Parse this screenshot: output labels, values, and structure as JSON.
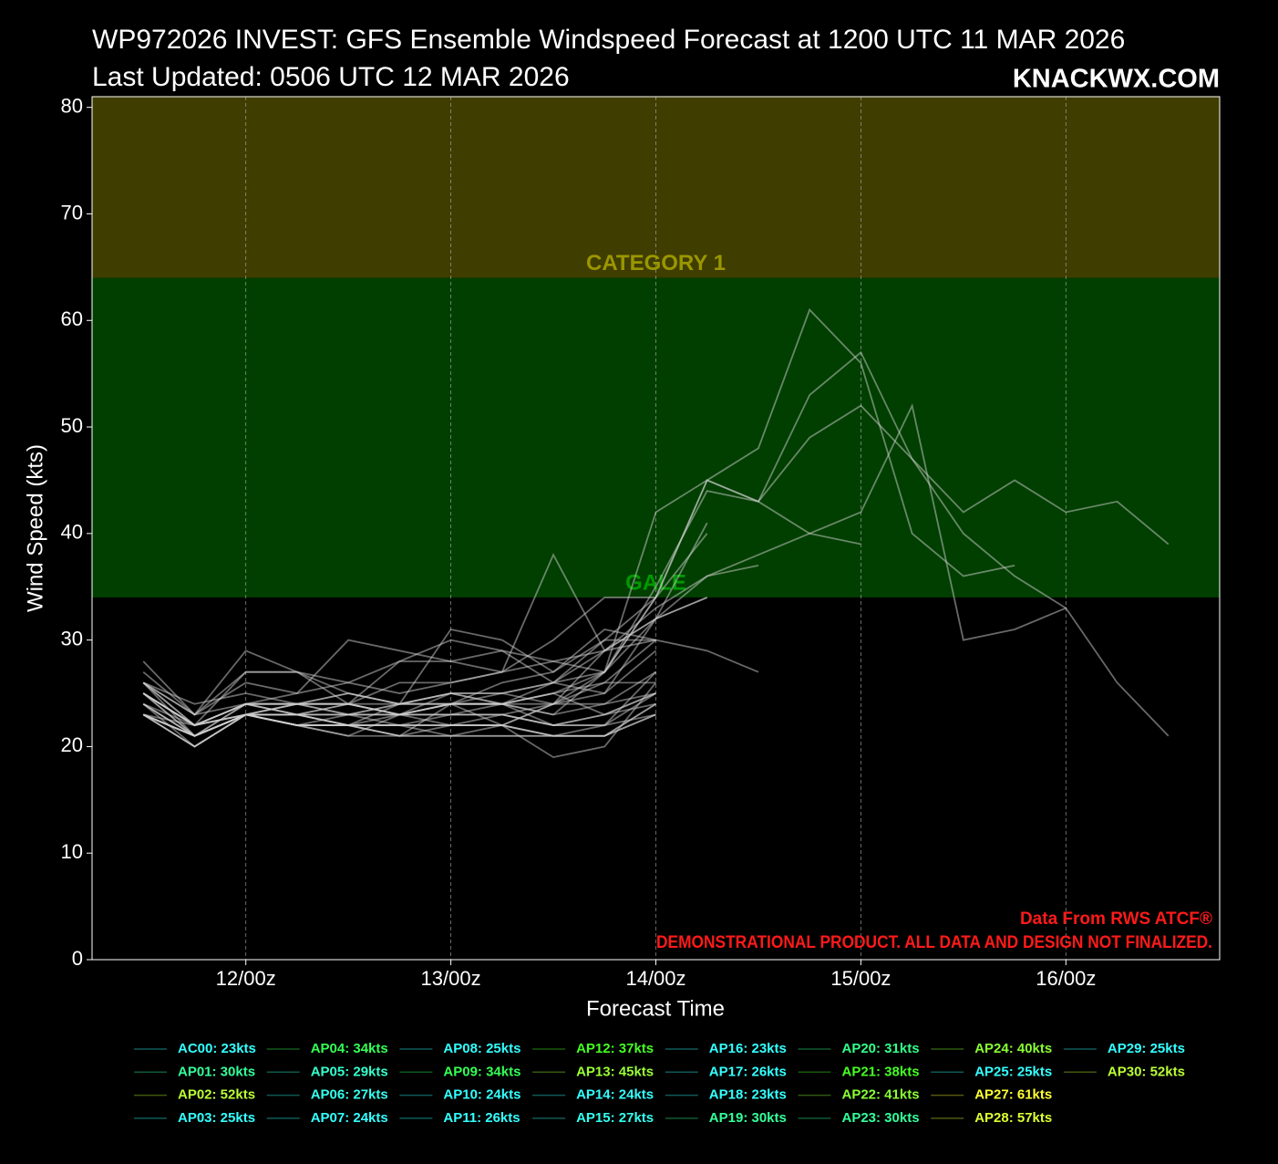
{
  "chart_data": {
    "type": "line",
    "title": "WP972026 INVEST: GFS Ensemble Windspeed Forecast at 1200 UTC 11 MAR 2026",
    "subtitle": "Last Updated: 0506 UTC 12 MAR 2026",
    "brand": "KNACKWX.COM",
    "source_note": "Data From RWS ATCF®",
    "disclaimer": "DEMONSTRATIONAL PRODUCT. ALL DATA AND DESIGN NOT FINALIZED.",
    "x_label": "Forecast Time",
    "y_label": "Wind Speed (kts)",
    "xlim": [
      -6,
      126
    ],
    "xticks": [
      {
        "value": 12,
        "label": "12/00z"
      },
      {
        "value": 36,
        "label": "13/00z"
      },
      {
        "value": 60,
        "label": "14/00z"
      },
      {
        "value": 84,
        "label": "15/00z"
      },
      {
        "value": 108,
        "label": "16/00z"
      }
    ],
    "ylim": [
      0,
      81
    ],
    "yticks": [
      0,
      10,
      20,
      30,
      40,
      50,
      60,
      70,
      80
    ],
    "grid": true,
    "line_color": "#d0d0d0",
    "bands": [
      {
        "label": "GALE",
        "from": 34,
        "to": 64,
        "color": "#003f00",
        "label_color": "#009a00"
      },
      {
        "label": "CATEGORY 1",
        "from": 64,
        "to": 81,
        "color": "#3f3d00",
        "label_color": "#9a9600"
      }
    ],
    "x": [
      0,
      6,
      12,
      18,
      24,
      30,
      36,
      42,
      48,
      54,
      60,
      66,
      72,
      78,
      84,
      90,
      96,
      102,
      108,
      114,
      120
    ],
    "series": [
      {
        "name": "AC00: 23kts",
        "color": "#33ffff",
        "values": [
          23,
          22,
          23,
          22,
          22,
          22,
          22,
          22,
          21,
          21,
          23,
          null,
          null,
          null,
          null,
          null,
          null,
          null,
          null,
          null,
          null
        ]
      },
      {
        "name": "AP01: 30kts",
        "color": "#33ff99",
        "values": [
          25,
          22,
          24,
          23,
          24,
          23,
          24,
          24,
          25,
          26,
          30,
          29,
          27,
          null,
          null,
          null,
          null,
          null,
          null,
          null,
          null
        ]
      },
      {
        "name": "AP02: 52kts",
        "color": "#bbff33",
        "values": [
          26,
          21,
          23,
          23,
          24,
          23,
          22,
          23,
          24,
          25,
          32,
          36,
          38,
          40,
          42,
          52,
          30,
          31,
          33,
          26,
          21
        ]
      },
      {
        "name": "AP03: 25kts",
        "color": "#33ffff",
        "values": [
          23,
          21,
          23,
          22,
          23,
          23,
          24,
          24,
          24,
          24,
          25,
          null,
          null,
          null,
          null,
          null,
          null,
          null,
          null,
          null,
          null
        ]
      },
      {
        "name": "AP04: 34kts",
        "color": "#33ff55",
        "values": [
          28,
          23,
          29,
          27,
          24,
          26,
          26,
          27,
          30,
          34,
          34,
          null,
          null,
          null,
          null,
          null,
          null,
          null,
          null,
          null,
          null
        ]
      },
      {
        "name": "AP05: 29kts",
        "color": "#33ffcc",
        "values": [
          26,
          24,
          25,
          24,
          24,
          28,
          28,
          29,
          26,
          25,
          29,
          null,
          null,
          null,
          null,
          null,
          null,
          null,
          null,
          null,
          null
        ]
      },
      {
        "name": "AP06: 27kts",
        "color": "#33ffee",
        "values": [
          25,
          21,
          23,
          22,
          21,
          23,
          23,
          23,
          22,
          22,
          27,
          null,
          null,
          null,
          null,
          null,
          null,
          null,
          null,
          null,
          null
        ]
      },
      {
        "name": "AP07: 24kts",
        "color": "#33ffff",
        "values": [
          23,
          21,
          23,
          22,
          22,
          21,
          21,
          21,
          21,
          21,
          24,
          null,
          null,
          null,
          null,
          null,
          null,
          null,
          null,
          null,
          null
        ]
      },
      {
        "name": "AP08: 25kts",
        "color": "#33ffff",
        "values": [
          24,
          22,
          24,
          23,
          22,
          24,
          24,
          24,
          22,
          23,
          25,
          null,
          null,
          null,
          null,
          null,
          null,
          null,
          null,
          null,
          null
        ]
      },
      {
        "name": "AP09: 34kts",
        "color": "#33ff55",
        "values": [
          25,
          22,
          23,
          22,
          22,
          21,
          21,
          22,
          24,
          29,
          32,
          34,
          null,
          null,
          null,
          null,
          null,
          null,
          null,
          null,
          null
        ]
      },
      {
        "name": "AP10: 24kts",
        "color": "#33ffff",
        "values": [
          24,
          20,
          23,
          22,
          22,
          21,
          22,
          22,
          21,
          21,
          24,
          null,
          null,
          null,
          null,
          null,
          null,
          null,
          null,
          null,
          null
        ]
      },
      {
        "name": "AP11: 26kts",
        "color": "#33ffff",
        "values": [
          25,
          22,
          24,
          23,
          23,
          23,
          24,
          22,
          19,
          20,
          26,
          null,
          null,
          null,
          null,
          null,
          null,
          null,
          null,
          null,
          null
        ]
      },
      {
        "name": "AP12: 37kts",
        "color": "#44ff22",
        "values": [
          25,
          22,
          24,
          24,
          25,
          24,
          25,
          25,
          26,
          29,
          33,
          36,
          37,
          null,
          null,
          null,
          null,
          null,
          null,
          null,
          null
        ]
      },
      {
        "name": "AP13: 45kts",
        "color": "#99ff33",
        "values": [
          26,
          23,
          27,
          27,
          26,
          28,
          30,
          29,
          28,
          27,
          34,
          45,
          43,
          40,
          39,
          null,
          null,
          null,
          null,
          null,
          null
        ]
      },
      {
        "name": "AP14: 24kts",
        "color": "#33ffff",
        "values": [
          23,
          21,
          23,
          23,
          23,
          22,
          23,
          23,
          22,
          23,
          24,
          null,
          null,
          null,
          null,
          null,
          null,
          null,
          null,
          null,
          null
        ]
      },
      {
        "name": "AP15: 27kts",
        "color": "#33ffee",
        "values": [
          26,
          22,
          23,
          24,
          24,
          23,
          23,
          24,
          23,
          24,
          27,
          null,
          null,
          null,
          null,
          null,
          null,
          null,
          null,
          null,
          null
        ]
      },
      {
        "name": "AP16: 23kts",
        "color": "#33ffff",
        "values": [
          23,
          20,
          23,
          23,
          22,
          22,
          22,
          22,
          21,
          21,
          23,
          null,
          null,
          null,
          null,
          null,
          null,
          null,
          null,
          null,
          null
        ]
      },
      {
        "name": "AP17: 26kts",
        "color": "#33ffff",
        "values": [
          26,
          23,
          24,
          24,
          23,
          24,
          25,
          25,
          24,
          26,
          26,
          null,
          null,
          null,
          null,
          null,
          null,
          null,
          null,
          null,
          null
        ]
      },
      {
        "name": "AP18: 23kts",
        "color": "#33ffff",
        "values": [
          23,
          21,
          23,
          23,
          22,
          22,
          21,
          21,
          21,
          22,
          23,
          null,
          null,
          null,
          null,
          null,
          null,
          null,
          null,
          null,
          null
        ]
      },
      {
        "name": "AP19: 30kts",
        "color": "#33ff99",
        "values": [
          24,
          21,
          24,
          25,
          30,
          29,
          28,
          27,
          28,
          29,
          30,
          null,
          null,
          null,
          null,
          null,
          null,
          null,
          null,
          null,
          null
        ]
      },
      {
        "name": "AP20: 31kts",
        "color": "#33ff88",
        "values": [
          26,
          22,
          27,
          27,
          25,
          24,
          31,
          30,
          27,
          31,
          30,
          null,
          null,
          null,
          null,
          null,
          null,
          null,
          null,
          null,
          null
        ]
      },
      {
        "name": "AP21: 38kts",
        "color": "#44ff22",
        "values": [
          27,
          23,
          26,
          25,
          26,
          25,
          26,
          27,
          38,
          29,
          32,
          34,
          null,
          null,
          null,
          null,
          null,
          null,
          null,
          null,
          null
        ]
      },
      {
        "name": "AP22: 41kts",
        "color": "#88ff33",
        "values": [
          24,
          21,
          23,
          24,
          24,
          24,
          24,
          24,
          25,
          27,
          32,
          41,
          null,
          null,
          null,
          null,
          null,
          null,
          null,
          null,
          null
        ]
      },
      {
        "name": "AP23: 30kts",
        "color": "#33ff99",
        "values": [
          23,
          20,
          23,
          22,
          21,
          21,
          24,
          26,
          27,
          30,
          30,
          null,
          null,
          null,
          null,
          null,
          null,
          null,
          null,
          null,
          null
        ]
      },
      {
        "name": "AP24: 40kts",
        "color": "#88ff33",
        "values": [
          23,
          21,
          23,
          22,
          22,
          22,
          22,
          22,
          24,
          27,
          34,
          40,
          null,
          null,
          null,
          null,
          null,
          null,
          null,
          null,
          null
        ]
      },
      {
        "name": "AP25: 25kts",
        "color": "#33ffff",
        "values": [
          25,
          21,
          24,
          24,
          24,
          23,
          23,
          23,
          22,
          22,
          25,
          null,
          null,
          null,
          null,
          null,
          null,
          null,
          null,
          null,
          null
        ]
      },
      {
        "name": "AP27: 61kts",
        "color": "#ffff33",
        "values": [
          23,
          20,
          23,
          23,
          22,
          23,
          24,
          24,
          23,
          27,
          42,
          45,
          48,
          61,
          56,
          40,
          36,
          37,
          null,
          null,
          null
        ]
      },
      {
        "name": "AP28: 57kts",
        "color": "#ddff33",
        "values": [
          24,
          21,
          23,
          24,
          23,
          23,
          25,
          24,
          26,
          30,
          34,
          45,
          43,
          53,
          57,
          47,
          40,
          36,
          33,
          null,
          null
        ]
      },
      {
        "name": "AP29: 25kts",
        "color": "#33ffff",
        "values": [
          25,
          22,
          23,
          23,
          23,
          24,
          25,
          24,
          25,
          23,
          25,
          null,
          null,
          null,
          null,
          null,
          null,
          null,
          null,
          null,
          null
        ]
      },
      {
        "name": "AP30: 52kts",
        "color": "#bbff33",
        "values": [
          25,
          22,
          24,
          24,
          25,
          24,
          24,
          25,
          26,
          27,
          35,
          44,
          43,
          49,
          52,
          47,
          42,
          45,
          42,
          43,
          39
        ]
      }
    ]
  }
}
